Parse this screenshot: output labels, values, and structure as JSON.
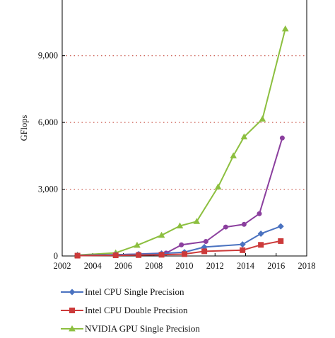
{
  "chart_data": {
    "type": "line",
    "ylabel": "GFlops",
    "xlabel": "",
    "xlim": [
      2002,
      2018
    ],
    "ylim": [
      0,
      11500
    ],
    "x_ticks": [
      2002,
      2004,
      2006,
      2008,
      2010,
      2012,
      2014,
      2016,
      2018
    ],
    "x_tick_labels": [
      "2002",
      "2004",
      "2006",
      "2008",
      "2010",
      "2012",
      "2014",
      "2016",
      "2018"
    ],
    "y_ticks": [
      0,
      3000,
      6000,
      9000
    ],
    "y_tick_labels": [
      "0",
      "3,000",
      "6,000",
      "9,000"
    ],
    "grid": "horizontal dotted",
    "legend_position": "bottom",
    "series": [
      {
        "name": "Intel CPU Single Precision",
        "color": "#4a72c0",
        "marker": "diamond",
        "points": [
          [
            2003,
            30
          ],
          [
            2005.5,
            60
          ],
          [
            2007,
            80
          ],
          [
            2008.5,
            110
          ],
          [
            2010,
            170
          ],
          [
            2011.3,
            400
          ],
          [
            2013.8,
            520
          ],
          [
            2015,
            1000
          ],
          [
            2016.3,
            1330
          ]
        ]
      },
      {
        "name": "Intel CPU Double Precision",
        "color": "#cc3a3a",
        "marker": "square",
        "points": [
          [
            2003,
            15
          ],
          [
            2005.5,
            30
          ],
          [
            2007,
            40
          ],
          [
            2008.5,
            55
          ],
          [
            2010,
            85
          ],
          [
            2011.3,
            210
          ],
          [
            2013.8,
            260
          ],
          [
            2015,
            500
          ],
          [
            2016.3,
            670
          ]
        ]
      },
      {
        "name": "",
        "color": "#8b3f9e",
        "marker": "circle",
        "points": [
          [
            2003,
            20
          ],
          [
            2005.5,
            50
          ],
          [
            2007,
            90
          ],
          [
            2008.8,
            130
          ],
          [
            2009.8,
            500
          ],
          [
            2011.4,
            650
          ],
          [
            2012.7,
            1300
          ],
          [
            2013.9,
            1420
          ],
          [
            2014.9,
            1900
          ],
          [
            2016.4,
            5300
          ]
        ]
      },
      {
        "name": "NVIDIA GPU Single Precision",
        "color": "#8cbf3f",
        "marker": "triangle",
        "points": [
          [
            2003,
            40
          ],
          [
            2005.5,
            140
          ],
          [
            2006.9,
            480
          ],
          [
            2008.5,
            930
          ],
          [
            2009.7,
            1350
          ],
          [
            2010.8,
            1550
          ],
          [
            2012.2,
            3100
          ],
          [
            2013.2,
            4500
          ],
          [
            2013.9,
            5350
          ],
          [
            2015.1,
            6150
          ],
          [
            2016.6,
            10200
          ]
        ]
      }
    ]
  }
}
